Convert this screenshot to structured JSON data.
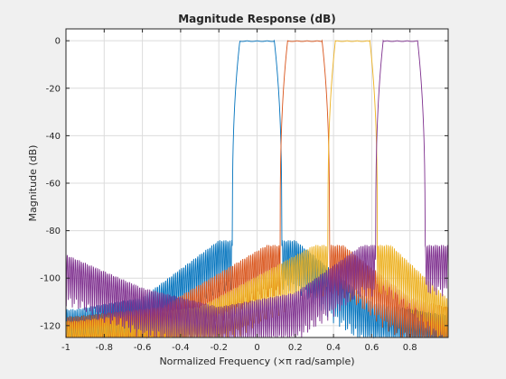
{
  "chart_data": {
    "type": "line",
    "title": "Magnitude Response (dB)",
    "xlabel_prefix": "Normalized Frequency  (",
    "xlabel_times": "×",
    "xlabel_pi": "π",
    "xlabel_suffix": " rad/sample)",
    "ylabel": "Magnitude (dB)",
    "xlim": [
      -1,
      1
    ],
    "ylim": [
      -125,
      5
    ],
    "xticks": [
      -1,
      -0.8,
      -0.6,
      -0.4,
      -0.2,
      0,
      0.2,
      0.4,
      0.6,
      0.8
    ],
    "xtick_labels": [
      "-1",
      "-0.8",
      "-0.6",
      "-0.4",
      "-0.2",
      "0",
      "0.2",
      "0.4",
      "0.6",
      "0.8"
    ],
    "yticks": [
      0,
      -20,
      -40,
      -60,
      -80,
      -100,
      -120
    ],
    "ytick_labels": [
      "0",
      "-20",
      "-40",
      "-60",
      "-80",
      "-100",
      "-120"
    ],
    "grid": true,
    "series": [
      {
        "color": "#0072bd",
        "passband": [
          -0.125,
          0.125
        ],
        "edge_drop": -80,
        "lobes": [
          [
            -0.95,
            -113
          ],
          [
            -0.6,
            -108
          ],
          [
            -0.2,
            -84
          ],
          [
            0.2,
            -84
          ],
          [
            0.6,
            -110
          ],
          [
            0.95,
            -115
          ]
        ]
      },
      {
        "color": "#d95319",
        "passband": [
          0.125,
          0.375
        ],
        "edge_drop": -82,
        "lobes": [
          [
            -0.95,
            -116
          ],
          [
            -0.5,
            -112
          ],
          [
            0.05,
            -86
          ],
          [
            0.45,
            -86
          ],
          [
            0.8,
            -108
          ],
          [
            0.99,
            -112
          ]
        ]
      },
      {
        "color": "#edb120",
        "passband": [
          0.375,
          0.625
        ],
        "edge_drop": -80,
        "lobes": [
          [
            -0.95,
            -118
          ],
          [
            -0.3,
            -112
          ],
          [
            0.3,
            -86
          ],
          [
            0.7,
            -86
          ],
          [
            0.99,
            -108
          ]
        ]
      },
      {
        "color": "#7e2f8e",
        "passband": [
          0.625,
          0.875
        ],
        "edge_drop": -84,
        "lobes": [
          [
            -1.0,
            -90
          ],
          [
            -0.6,
            -104
          ],
          [
            -0.2,
            -112
          ],
          [
            0.2,
            -106
          ],
          [
            0.55,
            -86
          ],
          [
            0.95,
            -86
          ]
        ]
      }
    ]
  }
}
